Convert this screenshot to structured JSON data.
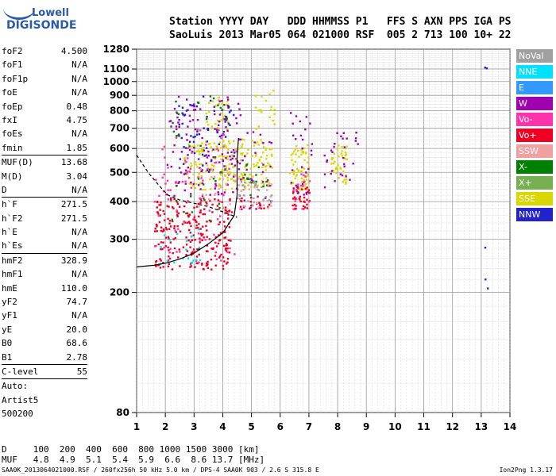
{
  "logo": {
    "line1": "Lowell",
    "line2": "DIGISONDE"
  },
  "header": {
    "line1": "Station YYYY DAY   DDD HHMMSS P1   FFS S AXN PPS IGA PS",
    "line2": "SaoLuis 2013 Mar05 064 021000 RSF  005 2 713 100 10+ 22"
  },
  "params": [
    {
      "k": "foF2",
      "v": "4.500"
    },
    {
      "k": "foF1",
      "v": "N/A"
    },
    {
      "k": "foF1p",
      "v": "N/A"
    },
    {
      "k": "foE",
      "v": "N/A"
    },
    {
      "k": "foEp",
      "v": "0.48"
    },
    {
      "k": "fxI",
      "v": "4.75"
    },
    {
      "k": "foEs",
      "v": "N/A"
    },
    {
      "k": "fmin",
      "v": "1.85",
      "sep": true
    },
    {
      "k": "MUF(D)",
      "v": "13.68"
    },
    {
      "k": "M(D)",
      "v": "3.04"
    },
    {
      "k": "D",
      "v": "N/A",
      "sep": true
    },
    {
      "k": "h`F",
      "v": "271.5"
    },
    {
      "k": "h`F2",
      "v": "271.5"
    },
    {
      "k": "h`E",
      "v": "N/A"
    },
    {
      "k": "h`Es",
      "v": "N/A",
      "sep": true
    },
    {
      "k": "hmF2",
      "v": "328.9"
    },
    {
      "k": "hmF1",
      "v": "N/A"
    },
    {
      "k": "hmE",
      "v": "110.0"
    },
    {
      "k": "yF2",
      "v": "74.7"
    },
    {
      "k": "yF1",
      "v": "N/A"
    },
    {
      "k": "yE",
      "v": "20.0"
    },
    {
      "k": "B0",
      "v": "68.6"
    },
    {
      "k": "B1",
      "v": "2.78",
      "sep": true
    },
    {
      "k": "C-level",
      "v": "55",
      "sep": true
    },
    {
      "k": "Auto:",
      "v": ""
    },
    {
      "k": "Artist5",
      "v": ""
    },
    {
      "k": "500200",
      "v": ""
    }
  ],
  "legend": [
    {
      "label": "NoVal",
      "color": "#a0a0a0"
    },
    {
      "label": "NNE",
      "color": "#00e0ff"
    },
    {
      "label": "E",
      "color": "#3399ff"
    },
    {
      "label": "W",
      "color": "#a000b0"
    },
    {
      "label": "Vo-",
      "color": "#ff33aa"
    },
    {
      "label": "Vo+",
      "color": "#ee0022"
    },
    {
      "label": "SSW",
      "color": "#f0a0a0"
    },
    {
      "label": "X-",
      "color": "#008000"
    },
    {
      "label": "X+",
      "color": "#77b050"
    },
    {
      "label": "SSE",
      "color": "#d8d800"
    },
    {
      "label": "NNW",
      "color": "#2222cc"
    }
  ],
  "bottom": {
    "d_line": "D     100  200  400  600  800 1000 1500 3000 [km]",
    "muf_line": "MUF   4.8  4.9  5.1  5.4  5.9  6.6  8.6 13.7 [MHz]"
  },
  "footer": {
    "text": "SAA0K_2013064021000.RSF / 260fx256h 50 kHz 5.0 km / DPS-4 SAA0K 903 / 2.6 S 315.8 E",
    "version": "Ion2Png 1.3.17"
  },
  "chart_data": {
    "type": "scatter",
    "title": "",
    "xlabel": "",
    "ylabel": "",
    "xlim": [
      1,
      14
    ],
    "ylim": [
      80,
      1280
    ],
    "yscale": "log",
    "grid": true,
    "x_ticks": [
      1,
      2,
      3,
      4,
      5,
      6,
      7,
      8,
      9,
      10,
      11,
      12,
      13,
      14
    ],
    "y_ticks": [
      80,
      200,
      300,
      400,
      500,
      600,
      700,
      800,
      900,
      1000,
      1100,
      1280
    ],
    "clusters": [
      {
        "name": "SSE",
        "color": "#d8d800",
        "regions": [
          [
            2.6,
            4.8,
            440,
            640,
            140
          ],
          [
            4.6,
            5.7,
            450,
            650,
            70
          ],
          [
            5.0,
            5.8,
            700,
            950,
            20
          ],
          [
            6.3,
            7.0,
            440,
            620,
            60
          ],
          [
            7.7,
            8.3,
            460,
            620,
            40
          ],
          [
            3.4,
            4.2,
            700,
            900,
            30
          ]
        ]
      },
      {
        "name": "Vo+",
        "color": "#ee0022",
        "regions": [
          [
            1.6,
            4.3,
            240,
            420,
            260
          ],
          [
            6.4,
            7.0,
            380,
            450,
            40
          ],
          [
            4.5,
            5.6,
            380,
            420,
            20
          ]
        ]
      },
      {
        "name": "W",
        "color": "#a000b0",
        "regions": [
          [
            2.0,
            4.6,
            420,
            900,
            140
          ],
          [
            4.5,
            5.7,
            380,
            700,
            30
          ],
          [
            6.3,
            7.1,
            420,
            800,
            30
          ],
          [
            7.5,
            8.7,
            430,
            700,
            30
          ]
        ]
      },
      {
        "name": "NNW",
        "color": "#2222cc",
        "regions": [
          [
            2.4,
            4.4,
            500,
            900,
            60
          ],
          [
            13.1,
            13.2,
            200,
            300,
            3
          ],
          [
            13.1,
            13.2,
            1100,
            1130,
            2
          ]
        ]
      },
      {
        "name": "Vo-",
        "color": "#ff33aa",
        "regions": [
          [
            1.6,
            4.5,
            250,
            700,
            80
          ],
          [
            6.4,
            7.0,
            380,
            500,
            15
          ]
        ]
      },
      {
        "name": "X-",
        "color": "#008000",
        "regions": [
          [
            2.2,
            4.2,
            330,
            900,
            35
          ],
          [
            4.6,
            5.6,
            420,
            540,
            15
          ]
        ]
      },
      {
        "name": "NNE",
        "color": "#00e0ff",
        "regions": [
          [
            1.7,
            3.2,
            250,
            330,
            20
          ]
        ]
      },
      {
        "name": "SSW",
        "color": "#f0a0a0",
        "regions": [
          [
            3.0,
            4.6,
            380,
            520,
            25
          ],
          [
            4.6,
            5.7,
            380,
            460,
            20
          ]
        ]
      },
      {
        "name": "NoVal",
        "color": "#a0a0a0",
        "regions": [
          [
            4.4,
            5.7,
            380,
            470,
            30
          ]
        ]
      }
    ],
    "curves": [
      {
        "name": "profile",
        "style": "solid",
        "points": [
          [
            1.0,
            243
          ],
          [
            1.6,
            246
          ],
          [
            2.0,
            250
          ],
          [
            2.5,
            258
          ],
          [
            3.0,
            270
          ],
          [
            3.5,
            290
          ],
          [
            4.0,
            315
          ],
          [
            4.4,
            360
          ],
          [
            4.5,
            420
          ],
          [
            4.5,
            560
          ],
          [
            4.55,
            650
          ]
        ]
      },
      {
        "name": "trace",
        "style": "dashed",
        "points": [
          [
            1.0,
            570
          ],
          [
            1.4,
            500
          ],
          [
            1.8,
            450
          ],
          [
            2.1,
            420
          ],
          [
            2.5,
            405
          ],
          [
            3.0,
            395
          ],
          [
            3.5,
            385
          ],
          [
            4.0,
            370
          ],
          [
            4.5,
            355
          ]
        ]
      }
    ]
  }
}
